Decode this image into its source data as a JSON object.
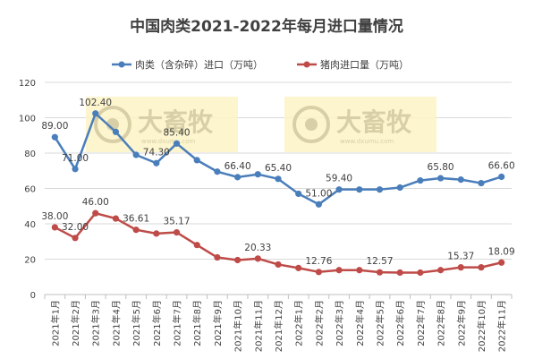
{
  "chart_data": {
    "type": "line",
    "title": "中国肉类2021-2022年每月进口量情况",
    "categories": [
      "2021年1月",
      "2021年2月",
      "2021年3月",
      "2021年4月",
      "2021年5月",
      "2021年6月",
      "2021年7月",
      "2021年8月",
      "2021年9月",
      "2021年10月",
      "2021年11月",
      "2021年12月",
      "2022年1月",
      "2022年2月",
      "2022年3月",
      "2022年4月",
      "2022年5月",
      "2022年6月",
      "2022年7月",
      "2022年8月",
      "2022年9月",
      "2022年10月",
      "2022年11月"
    ],
    "series": [
      {
        "name": "肉类（含杂碎）进口（万吨）",
        "color": "#4a7ebb",
        "values": [
          89.0,
          71.0,
          102.4,
          92.0,
          79.0,
          74.3,
          85.4,
          76.0,
          69.5,
          66.4,
          68.0,
          65.4,
          57.0,
          51.0,
          59.4,
          59.4,
          59.4,
          60.5,
          64.5,
          65.8,
          65.0,
          63.0,
          66.6
        ]
      },
      {
        "name": "猪肉进口量（万吨）",
        "color": "#be4b48",
        "values": [
          38.0,
          32.0,
          46.0,
          43.0,
          36.61,
          34.5,
          35.17,
          28.0,
          21.0,
          19.5,
          20.33,
          17.0,
          15.0,
          12.76,
          13.8,
          13.8,
          12.57,
          12.4,
          12.4,
          13.8,
          15.37,
          15.37,
          18.09
        ]
      }
    ],
    "data_labels": [
      {
        "series": 0,
        "index": 0,
        "text": "89.00"
      },
      {
        "series": 0,
        "index": 1,
        "text": "71.00"
      },
      {
        "series": 0,
        "index": 2,
        "text": "102.40"
      },
      {
        "series": 0,
        "index": 5,
        "text": "74.30"
      },
      {
        "series": 0,
        "index": 6,
        "text": "85.40"
      },
      {
        "series": 0,
        "index": 9,
        "text": "66.40"
      },
      {
        "series": 0,
        "index": 11,
        "text": "65.40"
      },
      {
        "series": 0,
        "index": 13,
        "text": "51.00"
      },
      {
        "series": 0,
        "index": 14,
        "text": "59.40"
      },
      {
        "series": 0,
        "index": 19,
        "text": "65.80"
      },
      {
        "series": 0,
        "index": 22,
        "text": "66.60"
      },
      {
        "series": 1,
        "index": 0,
        "text": "38.00"
      },
      {
        "series": 1,
        "index": 1,
        "text": "32.00"
      },
      {
        "series": 1,
        "index": 2,
        "text": "46.00"
      },
      {
        "series": 1,
        "index": 4,
        "text": "36.61"
      },
      {
        "series": 1,
        "index": 6,
        "text": "35.17"
      },
      {
        "series": 1,
        "index": 10,
        "text": "20.33"
      },
      {
        "series": 1,
        "index": 13,
        "text": "12.76"
      },
      {
        "series": 1,
        "index": 16,
        "text": "12.57"
      },
      {
        "series": 1,
        "index": 20,
        "text": "15.37"
      },
      {
        "series": 1,
        "index": 22,
        "text": "18.09"
      }
    ],
    "ylim": [
      0,
      120
    ],
    "yticks": [
      0,
      20,
      40,
      60,
      80,
      100,
      120
    ],
    "grid": true,
    "legend_position": "top",
    "watermark": {
      "brand": "大畜牧",
      "url": "www.dxumu.com"
    }
  }
}
